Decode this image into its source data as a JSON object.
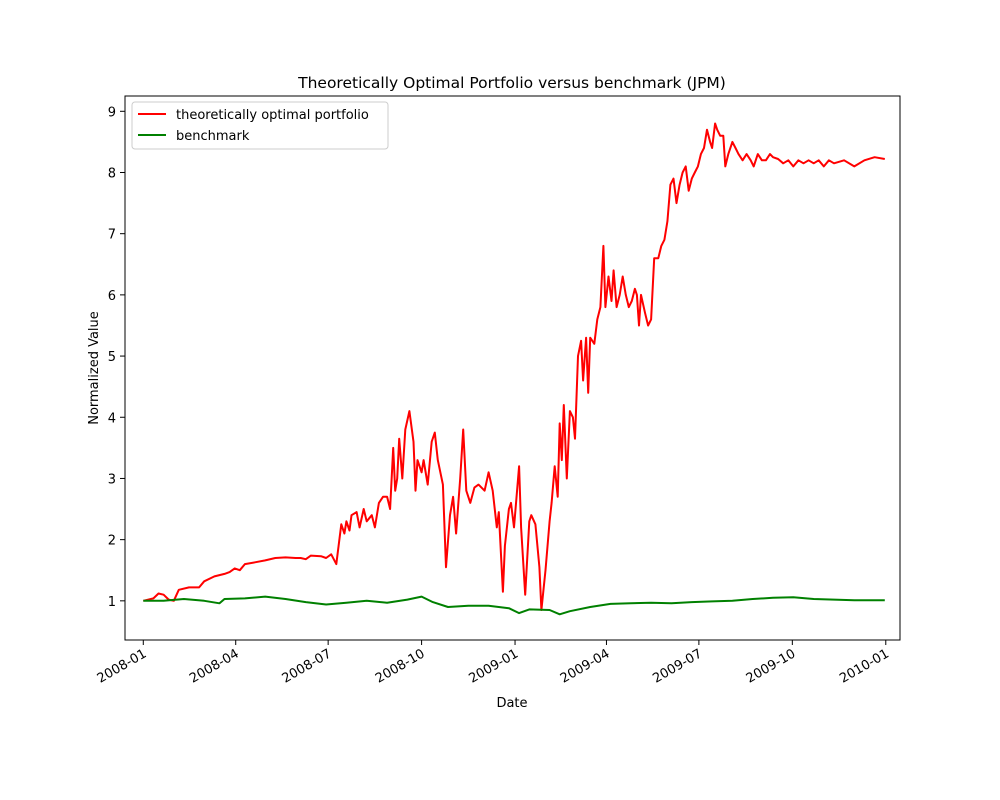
{
  "chart_data": {
    "type": "line",
    "title": "Theoretically Optimal Portfolio versus benchmark (JPM)",
    "xlabel": "Date",
    "ylabel": "Normalized Value",
    "xlim": [
      -18,
      745
    ],
    "ylim": [
      0.36,
      9.25
    ],
    "xticks": [
      {
        "x": 0,
        "label": "2008-01"
      },
      {
        "x": 91,
        "label": "2008-04"
      },
      {
        "x": 182,
        "label": "2008-07"
      },
      {
        "x": 274,
        "label": "2008-10"
      },
      {
        "x": 366,
        "label": "2009-01"
      },
      {
        "x": 456,
        "label": "2009-04"
      },
      {
        "x": 547,
        "label": "2009-07"
      },
      {
        "x": 639,
        "label": "2009-10"
      },
      {
        "x": 731,
        "label": "2010-01"
      }
    ],
    "yticks": [
      1,
      2,
      3,
      4,
      5,
      6,
      7,
      8,
      9
    ],
    "legend_position": "upper-left",
    "series": [
      {
        "name": "theoretically optimal portfolio",
        "color": "#ff0000",
        "points": [
          [
            0,
            1.0
          ],
          [
            10,
            1.04
          ],
          [
            15,
            1.12
          ],
          [
            20,
            1.1
          ],
          [
            25,
            1.02
          ],
          [
            30,
            1.0
          ],
          [
            35,
            1.18
          ],
          [
            45,
            1.22
          ],
          [
            55,
            1.22
          ],
          [
            60,
            1.32
          ],
          [
            70,
            1.4
          ],
          [
            80,
            1.44
          ],
          [
            85,
            1.47
          ],
          [
            90,
            1.53
          ],
          [
            95,
            1.5
          ],
          [
            100,
            1.6
          ],
          [
            110,
            1.63
          ],
          [
            120,
            1.66
          ],
          [
            130,
            1.7
          ],
          [
            140,
            1.71
          ],
          [
            150,
            1.7
          ],
          [
            155,
            1.7
          ],
          [
            160,
            1.68
          ],
          [
            165,
            1.74
          ],
          [
            175,
            1.73
          ],
          [
            180,
            1.7
          ],
          [
            185,
            1.76
          ],
          [
            190,
            1.6
          ],
          [
            195,
            2.25
          ],
          [
            198,
            2.1
          ],
          [
            200,
            2.3
          ],
          [
            203,
            2.15
          ],
          [
            205,
            2.4
          ],
          [
            210,
            2.45
          ],
          [
            213,
            2.2
          ],
          [
            217,
            2.5
          ],
          [
            220,
            2.3
          ],
          [
            225,
            2.4
          ],
          [
            228,
            2.2
          ],
          [
            232,
            2.6
          ],
          [
            236,
            2.7
          ],
          [
            240,
            2.7
          ],
          [
            243,
            2.5
          ],
          [
            246,
            3.5
          ],
          [
            248,
            2.8
          ],
          [
            250,
            3.0
          ],
          [
            252,
            3.65
          ],
          [
            255,
            3.0
          ],
          [
            258,
            3.8
          ],
          [
            262,
            4.1
          ],
          [
            266,
            3.6
          ],
          [
            268,
            2.8
          ],
          [
            270,
            3.3
          ],
          [
            274,
            3.1
          ],
          [
            276,
            3.3
          ],
          [
            280,
            2.9
          ],
          [
            284,
            3.6
          ],
          [
            287,
            3.75
          ],
          [
            290,
            3.3
          ],
          [
            295,
            2.9
          ],
          [
            298,
            1.55
          ],
          [
            302,
            2.4
          ],
          [
            305,
            2.7
          ],
          [
            308,
            2.1
          ],
          [
            312,
            3.0
          ],
          [
            315,
            3.8
          ],
          [
            318,
            2.8
          ],
          [
            322,
            2.6
          ],
          [
            326,
            2.85
          ],
          [
            330,
            2.9
          ],
          [
            336,
            2.8
          ],
          [
            340,
            3.1
          ],
          [
            344,
            2.8
          ],
          [
            348,
            2.2
          ],
          [
            350,
            2.45
          ],
          [
            354,
            1.15
          ],
          [
            356,
            1.9
          ],
          [
            360,
            2.5
          ],
          [
            362,
            2.6
          ],
          [
            365,
            2.2
          ],
          [
            370,
            3.2
          ],
          [
            372,
            2.2
          ],
          [
            376,
            1.1
          ],
          [
            380,
            2.3
          ],
          [
            382,
            2.4
          ],
          [
            386,
            2.25
          ],
          [
            390,
            1.55
          ],
          [
            392,
            0.85
          ],
          [
            396,
            1.5
          ],
          [
            400,
            2.3
          ],
          [
            402,
            2.6
          ],
          [
            405,
            3.2
          ],
          [
            408,
            2.7
          ],
          [
            410,
            3.9
          ],
          [
            412,
            3.3
          ],
          [
            414,
            4.2
          ],
          [
            417,
            3.0
          ],
          [
            420,
            4.1
          ],
          [
            423,
            4.0
          ],
          [
            425,
            3.65
          ],
          [
            428,
            5.0
          ],
          [
            431,
            5.25
          ],
          [
            433,
            4.6
          ],
          [
            436,
            5.3
          ],
          [
            438,
            4.4
          ],
          [
            440,
            5.3
          ],
          [
            444,
            5.2
          ],
          [
            447,
            5.6
          ],
          [
            450,
            5.8
          ],
          [
            453,
            6.8
          ],
          [
            455,
            5.8
          ],
          [
            458,
            6.3
          ],
          [
            461,
            5.9
          ],
          [
            463,
            6.4
          ],
          [
            466,
            5.8
          ],
          [
            469,
            6.0
          ],
          [
            472,
            6.3
          ],
          [
            475,
            6.0
          ],
          [
            478,
            5.8
          ],
          [
            481,
            5.9
          ],
          [
            484,
            6.1
          ],
          [
            486,
            6.0
          ],
          [
            488,
            5.5
          ],
          [
            490,
            6.0
          ],
          [
            494,
            5.7
          ],
          [
            497,
            5.5
          ],
          [
            500,
            5.6
          ],
          [
            503,
            6.6
          ],
          [
            507,
            6.6
          ],
          [
            510,
            6.8
          ],
          [
            513,
            6.9
          ],
          [
            516,
            7.2
          ],
          [
            519,
            7.8
          ],
          [
            522,
            7.9
          ],
          [
            525,
            7.5
          ],
          [
            528,
            7.8
          ],
          [
            531,
            8.0
          ],
          [
            534,
            8.1
          ],
          [
            537,
            7.7
          ],
          [
            540,
            7.9
          ],
          [
            543,
            8.0
          ],
          [
            546,
            8.1
          ],
          [
            549,
            8.3
          ],
          [
            552,
            8.4
          ],
          [
            555,
            8.7
          ],
          [
            558,
            8.5
          ],
          [
            560,
            8.4
          ],
          [
            563,
            8.8
          ],
          [
            565,
            8.7
          ],
          [
            568,
            8.6
          ],
          [
            571,
            8.6
          ],
          [
            573,
            8.1
          ],
          [
            576,
            8.3
          ],
          [
            580,
            8.5
          ],
          [
            583,
            8.4
          ],
          [
            586,
            8.3
          ],
          [
            590,
            8.2
          ],
          [
            594,
            8.3
          ],
          [
            598,
            8.2
          ],
          [
            601,
            8.1
          ],
          [
            605,
            8.3
          ],
          [
            609,
            8.2
          ],
          [
            613,
            8.2
          ],
          [
            617,
            8.3
          ],
          [
            620,
            8.25
          ],
          [
            625,
            8.22
          ],
          [
            630,
            8.15
          ],
          [
            635,
            8.2
          ],
          [
            640,
            8.1
          ],
          [
            645,
            8.2
          ],
          [
            650,
            8.15
          ],
          [
            655,
            8.2
          ],
          [
            660,
            8.15
          ],
          [
            665,
            8.2
          ],
          [
            670,
            8.1
          ],
          [
            675,
            8.2
          ],
          [
            680,
            8.15
          ],
          [
            690,
            8.2
          ],
          [
            700,
            8.1
          ],
          [
            710,
            8.2
          ],
          [
            720,
            8.25
          ],
          [
            730,
            8.22
          ]
        ]
      },
      {
        "name": "benchmark",
        "color": "#008000",
        "points": [
          [
            0,
            1.0
          ],
          [
            20,
            1.0
          ],
          [
            40,
            1.03
          ],
          [
            60,
            1.0
          ],
          [
            75,
            0.96
          ],
          [
            80,
            1.03
          ],
          [
            100,
            1.04
          ],
          [
            120,
            1.07
          ],
          [
            140,
            1.03
          ],
          [
            160,
            0.98
          ],
          [
            180,
            0.94
          ],
          [
            200,
            0.97
          ],
          [
            220,
            1.0
          ],
          [
            240,
            0.97
          ],
          [
            260,
            1.02
          ],
          [
            274,
            1.07
          ],
          [
            285,
            0.98
          ],
          [
            300,
            0.9
          ],
          [
            320,
            0.92
          ],
          [
            340,
            0.92
          ],
          [
            360,
            0.88
          ],
          [
            370,
            0.8
          ],
          [
            380,
            0.86
          ],
          [
            400,
            0.85
          ],
          [
            410,
            0.78
          ],
          [
            420,
            0.83
          ],
          [
            440,
            0.9
          ],
          [
            460,
            0.95
          ],
          [
            480,
            0.96
          ],
          [
            500,
            0.97
          ],
          [
            520,
            0.96
          ],
          [
            540,
            0.98
          ],
          [
            560,
            0.99
          ],
          [
            580,
            1.0
          ],
          [
            600,
            1.03
          ],
          [
            620,
            1.05
          ],
          [
            640,
            1.06
          ],
          [
            660,
            1.03
          ],
          [
            680,
            1.02
          ],
          [
            700,
            1.01
          ],
          [
            720,
            1.01
          ],
          [
            730,
            1.01
          ]
        ]
      }
    ]
  }
}
